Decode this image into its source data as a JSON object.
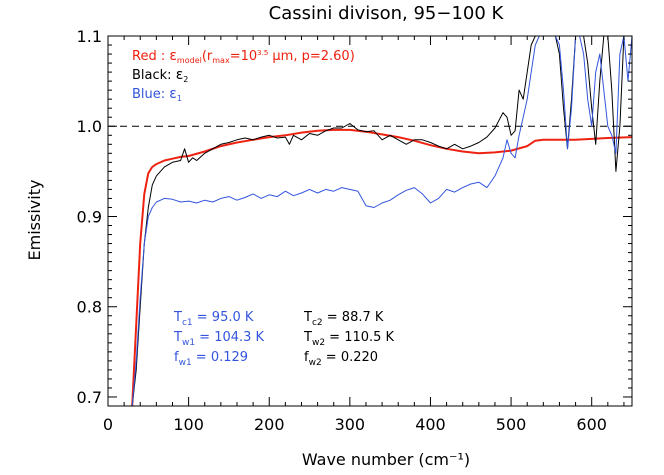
{
  "chart_data": {
    "type": "line",
    "title": "Cassini divison, 95−100 K",
    "xlabel": "Wave number (cm⁻¹)",
    "ylabel": "Emissivity",
    "xlim": [
      0,
      650
    ],
    "ylim": [
      0.69,
      1.1
    ],
    "xticks": [
      0,
      100,
      200,
      300,
      400,
      500,
      600
    ],
    "yticks": [
      0.7,
      0.8,
      0.9,
      1.0,
      1.1
    ],
    "xtick_labels": [
      "0",
      "100",
      "200",
      "300",
      "400",
      "500",
      "600"
    ],
    "ytick_labels": [
      "0.7",
      "0.8",
      "0.9",
      "1.0",
      "1.1"
    ],
    "reference_line": {
      "y": 1.0,
      "style": "dashed",
      "color": "#000000"
    },
    "legend": [
      {
        "prefix": "Red : ",
        "symbol": "ε",
        "sub": "model",
        "rest_a": "(r",
        "rest_sub": "max",
        "rest_b": "=10",
        "rest_sup": "3.5",
        "rest_c": " μm, p=2.60)",
        "color": "#ee2211"
      },
      {
        "prefix": "Black: ",
        "symbol": "ε",
        "sub": "2",
        "color": "#000000"
      },
      {
        "prefix": "Blue: ",
        "symbol": "ε",
        "sub": "1",
        "color": "#3355dd"
      }
    ],
    "annotations": {
      "blue": [
        {
          "label": "T",
          "sub": "c1",
          "value": " =   95.0 K"
        },
        {
          "label": "T",
          "sub": "w1",
          "value": " = 104.3 K"
        },
        {
          "label": "f",
          "sub": "w1",
          "value": " = 0.129"
        }
      ],
      "black": [
        {
          "label": "T",
          "sub": "c2",
          "value": " =   88.7 K"
        },
        {
          "label": "T",
          "sub": "w2",
          "value": " = 110.5 K"
        },
        {
          "label": "f",
          "sub": "w2",
          "value": " = 0.220"
        }
      ]
    },
    "series": [
      {
        "color": "#ee2211",
        "width": 2,
        "x": [
          30,
          35,
          40,
          45,
          50,
          55,
          60,
          70,
          80,
          90,
          100,
          120,
          140,
          160,
          180,
          200,
          220,
          240,
          260,
          280,
          300,
          320,
          340,
          360,
          380,
          400,
          420,
          440,
          460,
          480,
          500,
          520,
          530,
          540,
          560,
          580,
          600,
          620,
          650
        ],
        "y": [
          0.69,
          0.78,
          0.87,
          0.925,
          0.948,
          0.955,
          0.958,
          0.962,
          0.964,
          0.966,
          0.967,
          0.972,
          0.978,
          0.982,
          0.985,
          0.988,
          0.99,
          0.993,
          0.995,
          0.996,
          0.996,
          0.994,
          0.991,
          0.988,
          0.984,
          0.979,
          0.975,
          0.972,
          0.97,
          0.971,
          0.973,
          0.978,
          0.984,
          0.985,
          0.985,
          0.985,
          0.986,
          0.987,
          0.988
        ]
      },
      {
        "color": "#000000",
        "width": 1,
        "x": [
          30,
          35,
          40,
          45,
          50,
          55,
          60,
          70,
          80,
          90,
          95,
          100,
          105,
          110,
          120,
          130,
          140,
          150,
          160,
          170,
          180,
          190,
          200,
          210,
          220,
          225,
          230,
          240,
          250,
          260,
          270,
          280,
          290,
          300,
          310,
          320,
          330,
          340,
          350,
          360,
          370,
          380,
          390,
          400,
          410,
          420,
          430,
          440,
          450,
          460,
          470,
          480,
          490,
          495,
          500,
          505,
          510,
          515,
          520,
          525,
          530,
          535,
          540,
          545,
          550,
          555,
          560,
          565,
          570,
          575,
          580,
          585,
          590,
          595,
          600,
          605,
          610,
          615,
          620,
          625,
          630,
          635,
          640,
          645,
          650
        ],
        "y": [
          0.69,
          0.73,
          0.8,
          0.87,
          0.91,
          0.935,
          0.945,
          0.955,
          0.96,
          0.962,
          0.975,
          0.96,
          0.965,
          0.962,
          0.97,
          0.975,
          0.98,
          0.982,
          0.985,
          0.987,
          0.985,
          0.988,
          0.99,
          0.987,
          0.988,
          0.98,
          0.99,
          0.985,
          0.992,
          0.99,
          0.995,
          0.998,
          0.998,
          1.003,
          0.996,
          0.994,
          0.995,
          0.985,
          0.99,
          0.985,
          0.98,
          0.985,
          0.985,
          0.982,
          0.978,
          0.975,
          0.98,
          0.975,
          0.978,
          0.982,
          0.988,
          0.998,
          1.015,
          1.01,
          0.99,
          0.995,
          1.04,
          1.03,
          1.06,
          1.09,
          1.1,
          1.1,
          1.1,
          1.1,
          1.1,
          1.1,
          1.08,
          1.02,
          0.975,
          1.03,
          1.1,
          1.1,
          1.1,
          1.07,
          1.02,
          0.98,
          1.05,
          1.1,
          1.1,
          1.04,
          0.95,
          1.0,
          1.1,
          1.1,
          1.1
        ]
      },
      {
        "color": "#3355dd",
        "width": 1,
        "x": [
          30,
          35,
          40,
          45,
          50,
          55,
          60,
          70,
          80,
          90,
          100,
          110,
          120,
          130,
          140,
          150,
          160,
          170,
          180,
          190,
          200,
          210,
          220,
          230,
          240,
          250,
          260,
          270,
          280,
          290,
          300,
          310,
          320,
          330,
          340,
          350,
          360,
          370,
          380,
          390,
          400,
          410,
          420,
          430,
          440,
          450,
          460,
          470,
          480,
          490,
          495,
          500,
          505,
          510,
          515,
          520,
          525,
          530,
          535,
          540,
          545,
          550,
          555,
          560,
          565,
          570,
          575,
          580,
          585,
          590,
          595,
          600,
          605,
          610,
          615,
          620,
          625,
          630,
          635,
          640,
          645,
          650
        ],
        "y": [
          0.69,
          0.74,
          0.81,
          0.87,
          0.9,
          0.91,
          0.916,
          0.92,
          0.919,
          0.916,
          0.917,
          0.915,
          0.918,
          0.916,
          0.92,
          0.922,
          0.918,
          0.921,
          0.925,
          0.92,
          0.924,
          0.922,
          0.928,
          0.923,
          0.926,
          0.93,
          0.926,
          0.93,
          0.928,
          0.932,
          0.93,
          0.928,
          0.912,
          0.91,
          0.915,
          0.918,
          0.924,
          0.929,
          0.932,
          0.925,
          0.915,
          0.92,
          0.93,
          0.927,
          0.932,
          0.936,
          0.938,
          0.932,
          0.945,
          0.965,
          0.985,
          0.97,
          0.965,
          0.99,
          1.01,
          1.03,
          1.06,
          1.09,
          1.1,
          1.1,
          1.1,
          1.1,
          1.1,
          1.09,
          1.04,
          0.975,
          1.02,
          1.1,
          1.1,
          1.08,
          1.03,
          1.0,
          1.06,
          1.08,
          1.04,
          1.0,
          0.99,
          0.97,
          1.08,
          1.1,
          1.05,
          1.1
        ]
      }
    ]
  }
}
